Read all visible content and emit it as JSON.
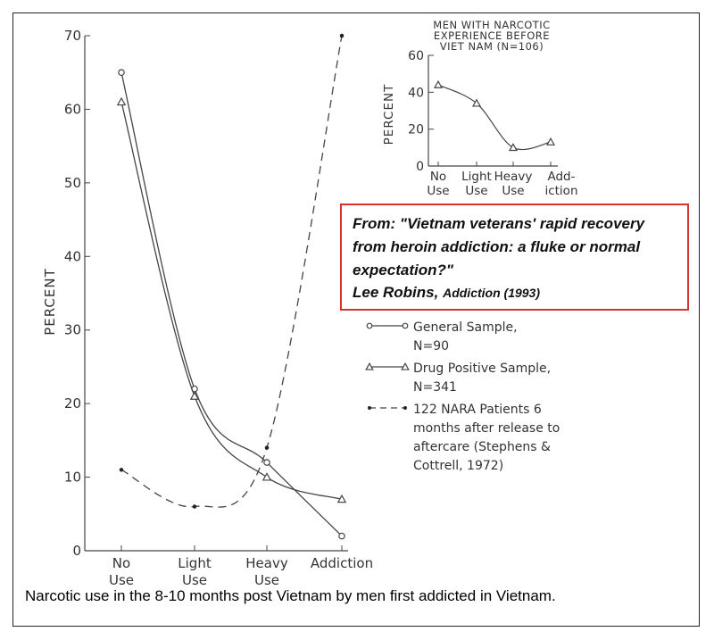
{
  "chart_data": [
    {
      "type": "line",
      "x": [
        "No Use",
        "Light Use",
        "Heavy Use",
        "Addiction"
      ],
      "x_tick_labels": [
        [
          "No",
          "Use"
        ],
        [
          "Light",
          "Use"
        ],
        [
          "Heavy",
          "Use"
        ],
        [
          "Addiction"
        ]
      ],
      "ylabel": "PERCENT",
      "ylim": [
        0,
        70
      ],
      "yticks": [
        0,
        10,
        20,
        30,
        40,
        50,
        60,
        70
      ],
      "grid": false,
      "series": [
        {
          "name": "General Sample, N=90",
          "marker": "open-circle",
          "line": "solid",
          "values": [
            65,
            22,
            12,
            2
          ]
        },
        {
          "name": "Drug Positive Sample, N=341",
          "marker": "open-triangle",
          "line": "solid",
          "values": [
            61,
            21,
            10,
            7
          ]
        },
        {
          "name": "122 NARA Patients 6 months after release to aftercare (Stephens & Cottrell, 1972)",
          "marker": "filled-dot",
          "line": "dashed",
          "values": [
            11,
            6,
            14,
            70
          ]
        }
      ]
    },
    {
      "type": "line",
      "title": "MEN WITH NARCOTIC EXPERIENCE BEFORE VIET NAM (N=106)",
      "title_lines": [
        "MEN WITH NARCOTIC",
        "EXPERIENCE BEFORE",
        "VIET NAM (N=106)"
      ],
      "x": [
        "No Use",
        "Light Use",
        "Heavy Use",
        "Addiction"
      ],
      "x_tick_labels": [
        [
          "No",
          "Use"
        ],
        [
          "Light",
          "Use"
        ],
        [
          "Heavy",
          "Use"
        ],
        [
          "Add-",
          "iction"
        ]
      ],
      "ylabel": "PERCENT",
      "ylim": [
        0,
        60
      ],
      "yticks": [
        0,
        20,
        40,
        60
      ],
      "series": [
        {
          "marker": "open-triangle",
          "line": "solid",
          "values": [
            44,
            34,
            10,
            13
          ]
        }
      ]
    }
  ],
  "legend": [
    {
      "text": "General Sample,\nN=90"
    },
    {
      "text": "Drug Positive Sample,\nN=341"
    },
    {
      "text": "122 NARA Patients 6\nmonths after release to\naftercare (Stephens &\nCottrell, 1972)"
    }
  ],
  "source": {
    "from_line": "From: \"Vietnam veterans' rapid recovery from heroin addiction: a fluke or normal expectation?\"",
    "author": "Lee Robins,",
    "journal": "Addiction (1993)"
  },
  "caption": "Narcotic use in the 8-10 months post Vietnam by men first addicted in Vietnam.",
  "colors": {
    "ink": "#444444",
    "box_border": "#d9342b"
  }
}
